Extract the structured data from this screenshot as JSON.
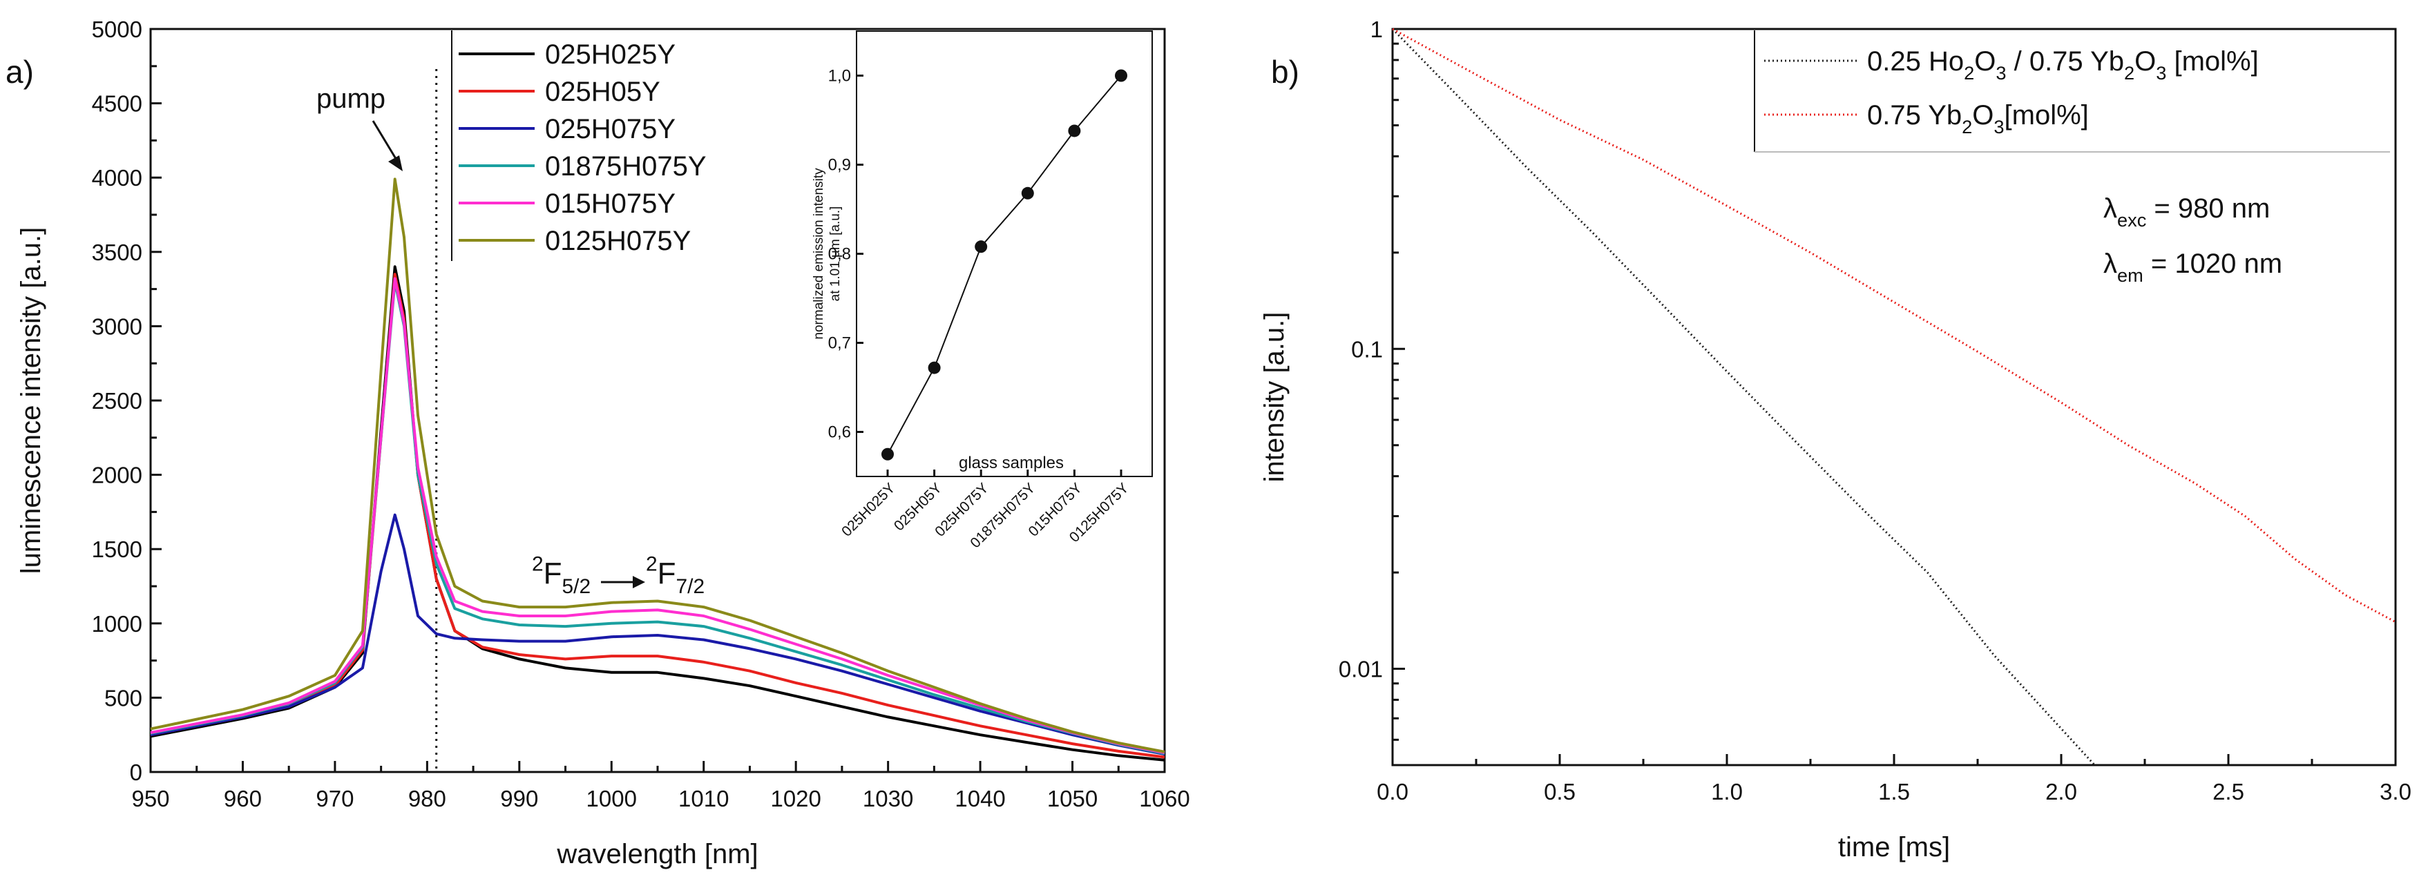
{
  "chart_data": [
    {
      "panel_label": "a)",
      "type": "line",
      "xlabel": "wavelength [nm]",
      "ylabel": "luminescence intensity [a.u.]",
      "xlim": [
        950,
        1060
      ],
      "ylim": [
        0,
        5000
      ],
      "xticks": [
        950,
        960,
        970,
        980,
        990,
        1000,
        1010,
        1020,
        1030,
        1040,
        1050,
        1060
      ],
      "yticks": [
        0,
        500,
        1000,
        1500,
        2000,
        2500,
        3000,
        3500,
        4000,
        4500,
        5000
      ],
      "legend_position": "top-center",
      "pump_marker": {
        "label": "pump",
        "x": 981
      },
      "transition_label": {
        "base_left": "2",
        "main_left": "F",
        "sub_left": "5/2",
        "base_right": "2",
        "main_right": "F",
        "sub_right": "7/2"
      },
      "series": [
        {
          "name": "025H025Y",
          "color": "#000000",
          "points": [
            [
              950,
              240
            ],
            [
              960,
              360
            ],
            [
              965,
              430
            ],
            [
              970,
              570
            ],
            [
              973,
              800
            ],
            [
              975,
              2300
            ],
            [
              976.5,
              3400
            ],
            [
              977.5,
              3100
            ],
            [
              979,
              2000
            ],
            [
              981,
              1300
            ],
            [
              983,
              950
            ],
            [
              986,
              830
            ],
            [
              990,
              760
            ],
            [
              995,
              700
            ],
            [
              1000,
              670
            ],
            [
              1005,
              670
            ],
            [
              1010,
              630
            ],
            [
              1015,
              580
            ],
            [
              1020,
              510
            ],
            [
              1025,
              440
            ],
            [
              1030,
              370
            ],
            [
              1035,
              310
            ],
            [
              1040,
              250
            ],
            [
              1045,
              200
            ],
            [
              1050,
              150
            ],
            [
              1055,
              110
            ],
            [
              1060,
              80
            ]
          ]
        },
        {
          "name": "025H05Y",
          "color": "#e8201c",
          "points": [
            [
              950,
              250
            ],
            [
              960,
              370
            ],
            [
              965,
              440
            ],
            [
              970,
              580
            ],
            [
              973,
              820
            ],
            [
              975,
              2250
            ],
            [
              976.5,
              3350
            ],
            [
              977.5,
              3050
            ],
            [
              979,
              2000
            ],
            [
              981,
              1300
            ],
            [
              983,
              950
            ],
            [
              986,
              840
            ],
            [
              990,
              790
            ],
            [
              995,
              760
            ],
            [
              1000,
              780
            ],
            [
              1005,
              780
            ],
            [
              1010,
              740
            ],
            [
              1015,
              680
            ],
            [
              1020,
              600
            ],
            [
              1025,
              530
            ],
            [
              1030,
              450
            ],
            [
              1035,
              380
            ],
            [
              1040,
              310
            ],
            [
              1045,
              250
            ],
            [
              1050,
              190
            ],
            [
              1055,
              140
            ],
            [
              1060,
              100
            ]
          ]
        },
        {
          "name": "025H075Y",
          "color": "#1a1aa8",
          "points": [
            [
              950,
              250
            ],
            [
              960,
              370
            ],
            [
              965,
              440
            ],
            [
              970,
              570
            ],
            [
              973,
              700
            ],
            [
              975,
              1350
            ],
            [
              976.5,
              1730
            ],
            [
              977.5,
              1500
            ],
            [
              979,
              1050
            ],
            [
              981,
              930
            ],
            [
              983,
              900
            ],
            [
              986,
              890
            ],
            [
              990,
              880
            ],
            [
              995,
              880
            ],
            [
              1000,
              910
            ],
            [
              1005,
              920
            ],
            [
              1010,
              890
            ],
            [
              1015,
              830
            ],
            [
              1020,
              760
            ],
            [
              1025,
              680
            ],
            [
              1030,
              590
            ],
            [
              1035,
              500
            ],
            [
              1040,
              410
            ],
            [
              1045,
              330
            ],
            [
              1050,
              250
            ],
            [
              1055,
              180
            ],
            [
              1060,
              120
            ]
          ]
        },
        {
          "name": "01875H075Y",
          "color": "#1aa0a0",
          "points": [
            [
              950,
              260
            ],
            [
              960,
              380
            ],
            [
              965,
              460
            ],
            [
              970,
              600
            ],
            [
              973,
              840
            ],
            [
              975,
              2250
            ],
            [
              976.5,
              3300
            ],
            [
              977.5,
              3000
            ],
            [
              979,
              2000
            ],
            [
              981,
              1400
            ],
            [
              983,
              1100
            ],
            [
              986,
              1030
            ],
            [
              990,
              990
            ],
            [
              995,
              980
            ],
            [
              1000,
              1000
            ],
            [
              1005,
              1010
            ],
            [
              1010,
              980
            ],
            [
              1015,
              900
            ],
            [
              1020,
              810
            ],
            [
              1025,
              720
            ],
            [
              1030,
              620
            ],
            [
              1035,
              520
            ],
            [
              1040,
              430
            ],
            [
              1045,
              340
            ],
            [
              1050,
              260
            ],
            [
              1055,
              185
            ],
            [
              1060,
              125
            ]
          ]
        },
        {
          "name": "015H075Y",
          "color": "#ff2ed0",
          "points": [
            [
              950,
              265
            ],
            [
              960,
              385
            ],
            [
              965,
              465
            ],
            [
              970,
              610
            ],
            [
              973,
              850
            ],
            [
              975,
              2260
            ],
            [
              976.5,
              3320
            ],
            [
              977.5,
              3020
            ],
            [
              979,
              2050
            ],
            [
              981,
              1450
            ],
            [
              983,
              1150
            ],
            [
              986,
              1080
            ],
            [
              990,
              1050
            ],
            [
              995,
              1050
            ],
            [
              1000,
              1080
            ],
            [
              1005,
              1090
            ],
            [
              1010,
              1050
            ],
            [
              1015,
              960
            ],
            [
              1020,
              860
            ],
            [
              1025,
              760
            ],
            [
              1030,
              650
            ],
            [
              1035,
              550
            ],
            [
              1040,
              450
            ],
            [
              1045,
              350
            ],
            [
              1050,
              265
            ],
            [
              1055,
              190
            ],
            [
              1060,
              130
            ]
          ]
        },
        {
          "name": "0125H075Y",
          "color": "#8a8a1a",
          "points": [
            [
              950,
              290
            ],
            [
              960,
              420
            ],
            [
              965,
              510
            ],
            [
              970,
              650
            ],
            [
              973,
              950
            ],
            [
              975,
              2700
            ],
            [
              976.5,
              3990
            ],
            [
              977.5,
              3600
            ],
            [
              979,
              2400
            ],
            [
              981,
              1600
            ],
            [
              983,
              1250
            ],
            [
              986,
              1150
            ],
            [
              990,
              1110
            ],
            [
              995,
              1110
            ],
            [
              1000,
              1140
            ],
            [
              1005,
              1150
            ],
            [
              1010,
              1110
            ],
            [
              1015,
              1020
            ],
            [
              1020,
              910
            ],
            [
              1025,
              800
            ],
            [
              1030,
              680
            ],
            [
              1035,
              570
            ],
            [
              1040,
              460
            ],
            [
              1045,
              360
            ],
            [
              1050,
              270
            ],
            [
              1055,
              195
            ],
            [
              1060,
              135
            ]
          ]
        }
      ],
      "inset": {
        "type": "line",
        "ylabel_line1": "normalized emission intensity",
        "ylabel_line2": "at 1.01 µm [a.u.]",
        "xlabel": "glass samples",
        "categories": [
          "025H025Y",
          "025H05Y",
          "025H075Y",
          "01875H075Y",
          "015H075Y",
          "0125H075Y"
        ],
        "values": [
          0.575,
          0.672,
          0.808,
          0.868,
          0.938,
          1.0
        ],
        "ylim": [
          0.55,
          1.05
        ],
        "yticks": [
          "0,6",
          "0,7",
          "0,8",
          "0,9",
          "1,0"
        ],
        "ytick_values": [
          0.6,
          0.7,
          0.8,
          0.9,
          1.0
        ]
      }
    },
    {
      "panel_label": "b)",
      "type": "line",
      "yscale": "log",
      "xlabel": "time [ms]",
      "ylabel": "intensity [a.u.]",
      "xlim": [
        0,
        3.0
      ],
      "ylim": [
        0.005,
        1
      ],
      "xticks": [
        "0.0",
        "0.5",
        "1.0",
        "1.5",
        "2.0",
        "2.5",
        "3.0"
      ],
      "xtick_values": [
        0,
        0.5,
        1.0,
        1.5,
        2.0,
        2.5,
        3.0
      ],
      "yticks": [
        "0.01",
        "0.1",
        "1"
      ],
      "ytick_values": [
        0.01,
        0.1,
        1
      ],
      "legend_position": "top-right",
      "annotations": {
        "exc_symbol": "λ",
        "exc_sub": "exc",
        "exc_value": " = 980 nm",
        "em_symbol": "λ",
        "em_sub": "em",
        "em_value": " = 1020 nm"
      },
      "series": [
        {
          "name": "0.25 Ho2O3 / 0.75 Yb2O3 [mol%]",
          "legend_parts": [
            "0.25 Ho",
            "2",
            "O",
            "3",
            " / 0.75 Yb",
            "2",
            "O",
            "3",
            " [mol%]"
          ],
          "color": "#222222",
          "points": [
            [
              0,
              1
            ],
            [
              0.2,
              0.61
            ],
            [
              0.4,
              0.37
            ],
            [
              0.6,
              0.23
            ],
            [
              0.8,
              0.14
            ],
            [
              1.0,
              0.085
            ],
            [
              1.2,
              0.052
            ],
            [
              1.4,
              0.032
            ],
            [
              1.6,
              0.02
            ],
            [
              1.8,
              0.011
            ],
            [
              2.0,
              0.0065
            ],
            [
              2.1,
              0.005
            ]
          ]
        },
        {
          "name": "0.75 Yb2O3 [mol%]",
          "legend_parts": [
            "0.75 Yb",
            "2",
            "O",
            "3",
            "[mol%]"
          ],
          "color": "#e8201c",
          "points": [
            [
              0,
              1
            ],
            [
              0.25,
              0.72
            ],
            [
              0.5,
              0.52
            ],
            [
              0.75,
              0.39
            ],
            [
              1.0,
              0.28
            ],
            [
              1.25,
              0.2
            ],
            [
              1.5,
              0.14
            ],
            [
              1.75,
              0.098
            ],
            [
              2.0,
              0.068
            ],
            [
              2.2,
              0.05
            ],
            [
              2.4,
              0.038
            ],
            [
              2.55,
              0.03
            ],
            [
              2.7,
              0.022
            ],
            [
              2.85,
              0.017
            ],
            [
              3.0,
              0.014
            ]
          ]
        }
      ]
    }
  ]
}
